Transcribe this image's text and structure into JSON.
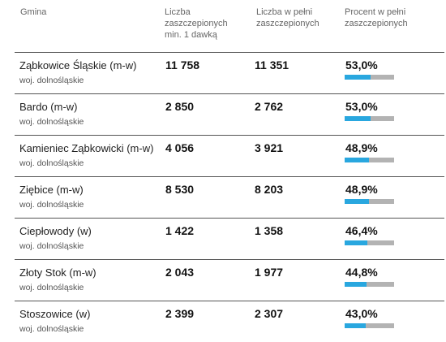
{
  "header": {
    "gmina": "Gmina",
    "one_dose": "Liczba zaszczepionych min. 1 dawką",
    "fully": "Liczba w pełni zaszczepionych",
    "percent": "Procent w pełni zaszczepionych"
  },
  "rows": [
    {
      "name": "Ząbkowice Śląskie (m-w)",
      "region": "woj. dolnośląskie",
      "one_dose": "11 758",
      "fully": "11 351",
      "percent": "53,0%",
      "fraction": 0.53
    },
    {
      "name": "Bardo (m-w)",
      "region": "woj. dolnośląskie",
      "one_dose": "2 850",
      "fully": "2 762",
      "percent": "53,0%",
      "fraction": 0.53
    },
    {
      "name": "Kamieniec Ząbkowicki (m-w)",
      "region": "woj. dolnośląskie",
      "one_dose": "4 056",
      "fully": "3 921",
      "percent": "48,9%",
      "fraction": 0.489
    },
    {
      "name": "Ziębice (m-w)",
      "region": "woj. dolnośląskie",
      "one_dose": "8 530",
      "fully": "8 203",
      "percent": "48,9%",
      "fraction": 0.489
    },
    {
      "name": "Ciepłowody (w)",
      "region": "woj. dolnośląskie",
      "one_dose": "1 422",
      "fully": "1 358",
      "percent": "46,4%",
      "fraction": 0.464
    },
    {
      "name": "Złoty Stok (m-w)",
      "region": "woj. dolnośląskie",
      "one_dose": "2 043",
      "fully": "1 977",
      "percent": "44,8%",
      "fraction": 0.448
    },
    {
      "name": "Stoszowice (w)",
      "region": "woj. dolnośląskie",
      "one_dose": "2 399",
      "fully": "2 307",
      "percent": "43,0%",
      "fraction": 0.43
    }
  ],
  "colors": {
    "bar_fill": "#29a7df",
    "bar_track": "#b3b3b3",
    "row_border": "#555555"
  }
}
